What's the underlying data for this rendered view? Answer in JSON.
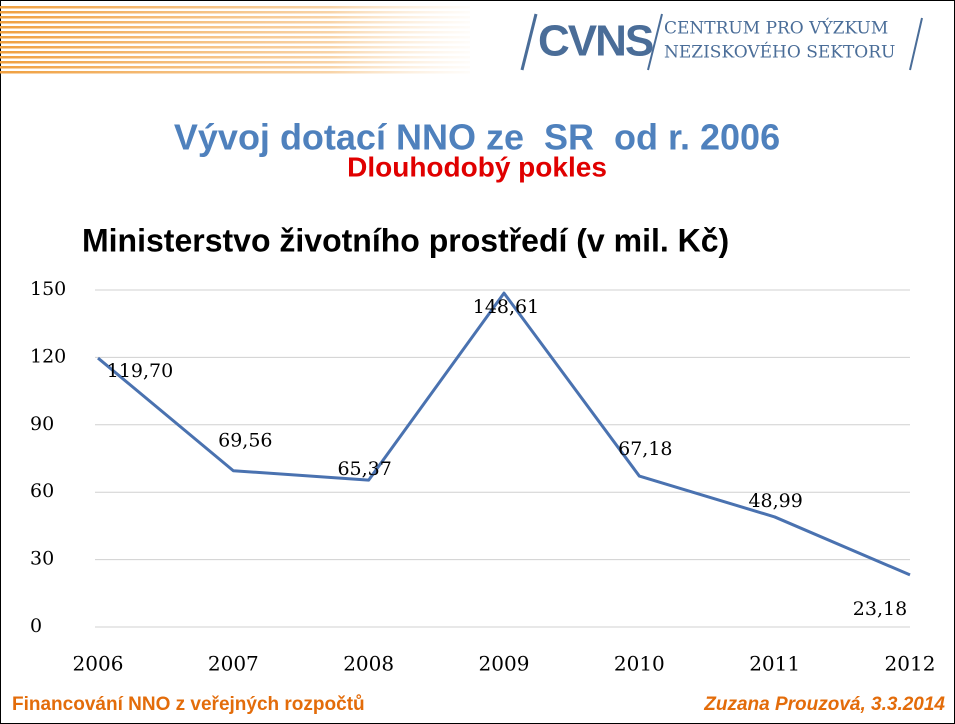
{
  "logo": {
    "mark": "CVNS",
    "line1": "CENTRUM PRO VÝZKUM",
    "line2": "NEZISKOVÉHO SEKTORU"
  },
  "slide": {
    "title": "Vývoj dotací NNO ze  SR  od r. 2006",
    "subtitle": "Dlouhodobý pokles"
  },
  "footer": {
    "left": "Financování NNO z veřejných rozpočtů",
    "right": "Zuzana Prouzová, 3.3.2014"
  },
  "chart_data": {
    "type": "line",
    "title": "Ministerstvo životního prostředí (v mil. Kč)",
    "categories": [
      "2006",
      "2007",
      "2008",
      "2009",
      "2010",
      "2011",
      "2012"
    ],
    "values": [
      119.7,
      69.56,
      65.37,
      148.61,
      67.18,
      48.99,
      23.18
    ],
    "value_labels": [
      "119,70",
      "69,56",
      "65,37",
      "148,61",
      "67,18",
      "48,99",
      "23,18"
    ],
    "color": "#4a72b0",
    "ylim": [
      0,
      150
    ],
    "yticks": [
      0,
      30,
      60,
      90,
      120,
      150
    ],
    "grid": true
  }
}
